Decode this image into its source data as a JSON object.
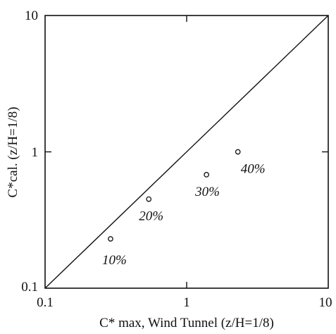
{
  "chart_data": {
    "type": "scatter",
    "xscale": "log",
    "yscale": "log",
    "xlim": [
      0.1,
      10
    ],
    "ylim": [
      0.1,
      10
    ],
    "grid": false,
    "x_ticks": [
      "0.1",
      "1",
      "10"
    ],
    "y_ticks": [
      "0.1",
      "1",
      "10"
    ],
    "xlabel": "C* max, Wind Tunnel (z/H=1/8)",
    "ylabel": "C*cal. (z/H=1/8)",
    "reference_line": {
      "type": "y=x",
      "from": [
        0.1,
        0.1
      ],
      "to": [
        10,
        10
      ]
    },
    "points": [
      {
        "x": 0.29,
        "y": 0.23,
        "label": "10%"
      },
      {
        "x": 0.54,
        "y": 0.45,
        "label": "20%"
      },
      {
        "x": 1.38,
        "y": 0.68,
        "label": "30%"
      },
      {
        "x": 2.3,
        "y": 1.0,
        "label": "40%"
      }
    ],
    "marker": "open-circle",
    "colors": {
      "line": "#111111",
      "marker": "#111111"
    }
  }
}
